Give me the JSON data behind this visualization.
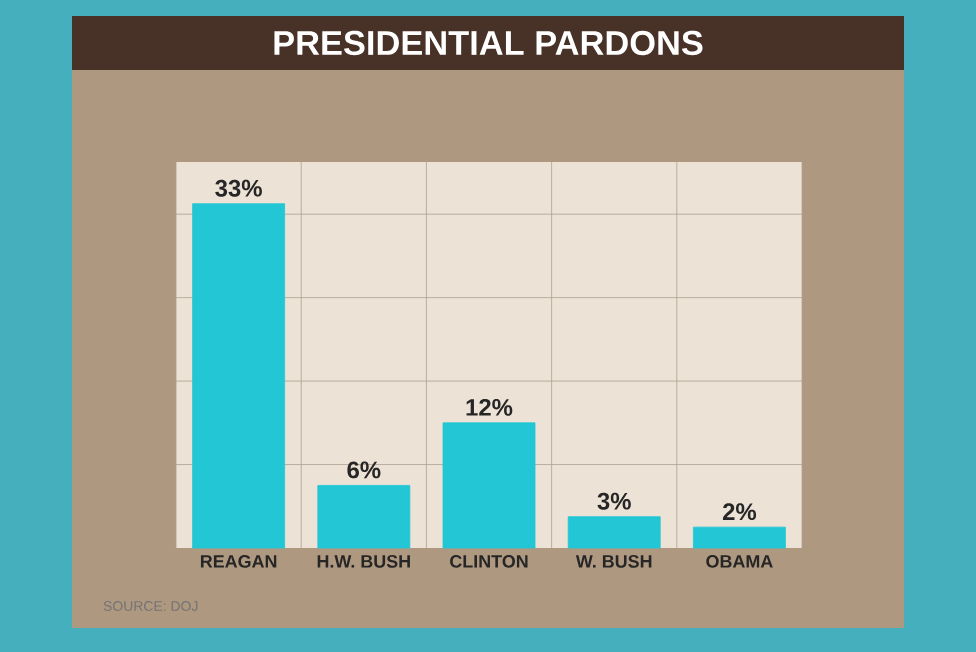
{
  "chart_data": {
    "type": "bar",
    "title": "PRESIDENTIAL PARDONS",
    "categories": [
      "REAGAN",
      "H.W. BUSH",
      "CLINTON",
      "W. BUSH",
      "OBAMA"
    ],
    "values": [
      33,
      6,
      12,
      3,
      2
    ],
    "value_labels": [
      "33%",
      "6%",
      "12%",
      "3%",
      "2%"
    ],
    "color": "#22c6d4",
    "ylim": [
      0,
      37
    ],
    "yticks": [
      {
        "value": 8,
        "label": null
      },
      {
        "value": 16,
        "label": null
      },
      {
        "value": 24,
        "label": null
      },
      {
        "value": 32,
        "label": null
      }
    ],
    "grid": true,
    "annotations": [
      "SOURCE: DOJ"
    ]
  }
}
